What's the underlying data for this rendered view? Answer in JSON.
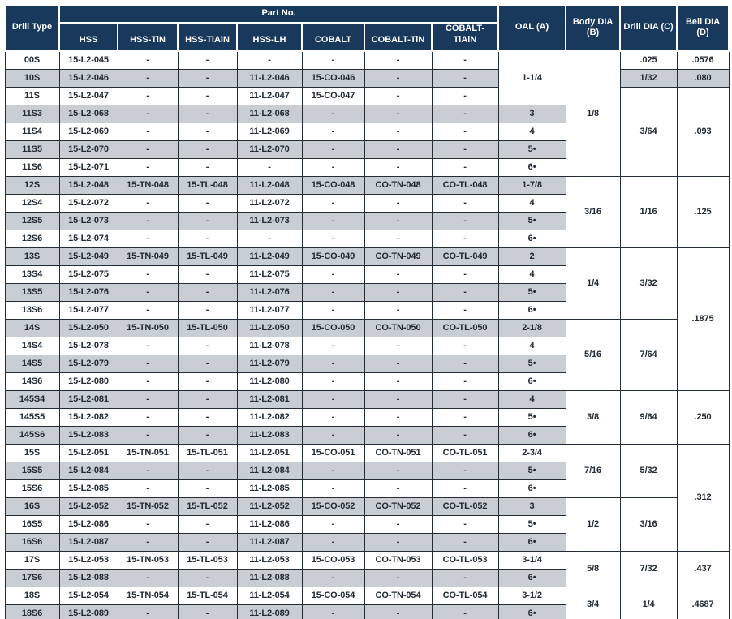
{
  "colors": {
    "header_bg": "#18395b",
    "header_text": "#ffffff",
    "row_stripe": "#c8ced4",
    "row_white": "#ffffff",
    "cell_border": "#242c36",
    "body_text": "#222a34"
  },
  "table": {
    "header": {
      "drill_type_label": "Drill Type",
      "part_no_label": "Part No.",
      "part_columns": [
        "HSS",
        "HSS-TiN",
        "HSS-TiAlN",
        "HSS-LH",
        "COBALT",
        "COBALT-TiN",
        "COBALT-TiAlN"
      ],
      "oal_label": "OAL (A)",
      "body_dia_label": "Body DIA\n(B)",
      "drill_dia_label": "Drill DIA (C)",
      "bell_dia_label": "Bell DIA\n(D)"
    },
    "rows": [
      {
        "drill_type": "00S",
        "parts": [
          "15-L2-045",
          "-",
          "-",
          "-",
          "-",
          "-",
          "-"
        ],
        "oal": {
          "value": "1-1/4",
          "rowspan": 3
        },
        "body": {
          "value": "1/8",
          "rowspan": 7
        },
        "drill": {
          "value": ".025",
          "rowspan": 1
        },
        "bell": {
          "value": ".0576",
          "rowspan": 1
        }
      },
      {
        "drill_type": "10S",
        "parts": [
          "15-L2-046",
          "-",
          "-",
          "11-L2-046",
          "15-CO-046",
          "-",
          "-"
        ],
        "drill": {
          "value": "1/32",
          "rowspan": 1
        },
        "bell": {
          "value": ".080",
          "rowspan": 1
        }
      },
      {
        "drill_type": "11S",
        "parts": [
          "15-L2-047",
          "-",
          "-",
          "11-L2-047",
          "15-CO-047",
          "-",
          "-"
        ],
        "drill": {
          "value": "3/64",
          "rowspan": 5
        },
        "bell": {
          "value": ".093",
          "rowspan": 5
        }
      },
      {
        "drill_type": "11S3",
        "parts": [
          "15-L2-068",
          "-",
          "-",
          "11-L2-068",
          "-",
          "-",
          "-"
        ],
        "oal": {
          "value": "3",
          "rowspan": 1
        }
      },
      {
        "drill_type": "11S4",
        "parts": [
          "15-L2-069",
          "-",
          "-",
          "11-L2-069",
          "-",
          "-",
          "-"
        ],
        "oal": {
          "value": "4",
          "rowspan": 1
        }
      },
      {
        "drill_type": "11S5",
        "parts": [
          "15-L2-070",
          "-",
          "-",
          "11-L2-070",
          "-",
          "-",
          "-"
        ],
        "oal": {
          "value": "5•",
          "rowspan": 1
        }
      },
      {
        "drill_type": "11S6",
        "parts": [
          "15-L2-071",
          "-",
          "-",
          "-",
          "-",
          "-",
          "-"
        ],
        "oal": {
          "value": "6•",
          "rowspan": 1
        }
      },
      {
        "drill_type": "12S",
        "parts": [
          "15-L2-048",
          "15-TN-048",
          "15-TL-048",
          "11-L2-048",
          "15-CO-048",
          "CO-TN-048",
          "CO-TL-048"
        ],
        "oal": {
          "value": "1-7/8",
          "rowspan": 1
        },
        "body": {
          "value": "3/16",
          "rowspan": 4
        },
        "drill": {
          "value": "1/16",
          "rowspan": 4
        },
        "bell": {
          "value": ".125",
          "rowspan": 4
        }
      },
      {
        "drill_type": "12S4",
        "parts": [
          "15-L2-072",
          "-",
          "-",
          "11-L2-072",
          "-",
          "-",
          "-"
        ],
        "oal": {
          "value": "4",
          "rowspan": 1
        }
      },
      {
        "drill_type": "12S5",
        "parts": [
          "15-L2-073",
          "-",
          "-",
          "11-L2-073",
          "-",
          "-",
          "-"
        ],
        "oal": {
          "value": "5•",
          "rowspan": 1
        }
      },
      {
        "drill_type": "12S6",
        "parts": [
          "15-L2-074",
          "-",
          "-",
          "-",
          "-",
          "-",
          "-"
        ],
        "oal": {
          "value": "6•",
          "rowspan": 1
        }
      },
      {
        "drill_type": "13S",
        "parts": [
          "15-L2-049",
          "15-TN-049",
          "15-TL-049",
          "11-L2-049",
          "15-CO-049",
          "CO-TN-049",
          "CO-TL-049"
        ],
        "oal": {
          "value": "2",
          "rowspan": 1
        },
        "body": {
          "value": "1/4",
          "rowspan": 4
        },
        "drill": {
          "value": "3/32",
          "rowspan": 4
        },
        "bell": {
          "value": ".1875",
          "rowspan": 8
        }
      },
      {
        "drill_type": "13S4",
        "parts": [
          "15-L2-075",
          "-",
          "-",
          "11-L2-075",
          "-",
          "-",
          "-"
        ],
        "oal": {
          "value": "4",
          "rowspan": 1
        }
      },
      {
        "drill_type": "13S5",
        "parts": [
          "15-L2-076",
          "-",
          "-",
          "11-L2-076",
          "-",
          "-",
          "-"
        ],
        "oal": {
          "value": "5•",
          "rowspan": 1
        }
      },
      {
        "drill_type": "13S6",
        "parts": [
          "15-L2-077",
          "-",
          "-",
          "11-L2-077",
          "-",
          "-",
          "-"
        ],
        "oal": {
          "value": "6•",
          "rowspan": 1
        }
      },
      {
        "drill_type": "14S",
        "parts": [
          "15-L2-050",
          "15-TN-050",
          "15-TL-050",
          "11-L2-050",
          "15-CO-050",
          "CO-TN-050",
          "CO-TL-050"
        ],
        "oal": {
          "value": "2-1/8",
          "rowspan": 1
        },
        "body": {
          "value": "5/16",
          "rowspan": 4
        },
        "drill": {
          "value": "7/64",
          "rowspan": 4
        }
      },
      {
        "drill_type": "14S4",
        "parts": [
          "15-L2-078",
          "-",
          "-",
          "11-L2-078",
          "-",
          "-",
          "-"
        ],
        "oal": {
          "value": "4",
          "rowspan": 1
        }
      },
      {
        "drill_type": "14S5",
        "parts": [
          "15-L2-079",
          "-",
          "-",
          "11-L2-079",
          "-",
          "-",
          "-"
        ],
        "oal": {
          "value": "5•",
          "rowspan": 1
        }
      },
      {
        "drill_type": "14S6",
        "parts": [
          "15-L2-080",
          "-",
          "-",
          "11-L2-080",
          "-",
          "-",
          "-"
        ],
        "oal": {
          "value": "6•",
          "rowspan": 1
        }
      },
      {
        "drill_type": "145S4",
        "parts": [
          "15-L2-081",
          "-",
          "-",
          "11-L2-081",
          "-",
          "-",
          "-"
        ],
        "oal": {
          "value": "4",
          "rowspan": 1
        },
        "body": {
          "value": "3/8",
          "rowspan": 3
        },
        "drill": {
          "value": "9/64",
          "rowspan": 3
        },
        "bell": {
          "value": ".250",
          "rowspan": 3
        }
      },
      {
        "drill_type": "145S5",
        "parts": [
          "15-L2-082",
          "-",
          "-",
          "11-L2-082",
          "-",
          "-",
          "-"
        ],
        "oal": {
          "value": "5•",
          "rowspan": 1
        }
      },
      {
        "drill_type": "145S6",
        "parts": [
          "15-L2-083",
          "-",
          "-",
          "11-L2-083",
          "-",
          "-",
          "-"
        ],
        "oal": {
          "value": "6•",
          "rowspan": 1
        }
      },
      {
        "drill_type": "15S",
        "parts": [
          "15-L2-051",
          "15-TN-051",
          "15-TL-051",
          "11-L2-051",
          "15-CO-051",
          "CO-TN-051",
          "CO-TL-051"
        ],
        "oal": {
          "value": "2-3/4",
          "rowspan": 1
        },
        "body": {
          "value": "7/16",
          "rowspan": 3
        },
        "drill": {
          "value": "5/32",
          "rowspan": 3
        },
        "bell": {
          "value": ".312",
          "rowspan": 6
        }
      },
      {
        "drill_type": "15S5",
        "parts": [
          "15-L2-084",
          "-",
          "-",
          "11-L2-084",
          "-",
          "-",
          "-"
        ],
        "oal": {
          "value": "5•",
          "rowspan": 1
        }
      },
      {
        "drill_type": "15S6",
        "parts": [
          "15-L2-085",
          "-",
          "-",
          "11-L2-085",
          "-",
          "-",
          "-"
        ],
        "oal": {
          "value": "6•",
          "rowspan": 1
        }
      },
      {
        "drill_type": "16S",
        "parts": [
          "15-L2-052",
          "15-TN-052",
          "15-TL-052",
          "11-L2-052",
          "15-CO-052",
          "CO-TN-052",
          "CO-TL-052"
        ],
        "oal": {
          "value": "3",
          "rowspan": 1
        },
        "body": {
          "value": "1/2",
          "rowspan": 3
        },
        "drill": {
          "value": "3/16",
          "rowspan": 3
        }
      },
      {
        "drill_type": "16S5",
        "parts": [
          "15-L2-086",
          "-",
          "-",
          "11-L2-086",
          "-",
          "-",
          "-"
        ],
        "oal": {
          "value": "5•",
          "rowspan": 1
        }
      },
      {
        "drill_type": "16S6",
        "parts": [
          "15-L2-087",
          "-",
          "-",
          "11-L2-087",
          "-",
          "-",
          "-"
        ],
        "oal": {
          "value": "6•",
          "rowspan": 1
        }
      },
      {
        "drill_type": "17S",
        "parts": [
          "15-L2-053",
          "15-TN-053",
          "15-TL-053",
          "11-L2-053",
          "15-CO-053",
          "CO-TN-053",
          "CO-TL-053"
        ],
        "oal": {
          "value": "3-1/4",
          "rowspan": 1
        },
        "body": {
          "value": "5/8",
          "rowspan": 2
        },
        "drill": {
          "value": "7/32",
          "rowspan": 2
        },
        "bell": {
          "value": ".437",
          "rowspan": 2
        }
      },
      {
        "drill_type": "17S6",
        "parts": [
          "15-L2-088",
          "-",
          "-",
          "11-L2-088",
          "-",
          "-",
          "-"
        ],
        "oal": {
          "value": "6•",
          "rowspan": 1
        }
      },
      {
        "drill_type": "18S",
        "parts": [
          "15-L2-054",
          "15-TN-054",
          "15-TL-054",
          "11-L2-054",
          "15-CO-054",
          "CO-TN-054",
          "CO-TL-054"
        ],
        "oal": {
          "value": "3-1/2",
          "rowspan": 1
        },
        "body": {
          "value": "3/4",
          "rowspan": 2
        },
        "drill": {
          "value": "1/4",
          "rowspan": 2
        },
        "bell": {
          "value": ".4687",
          "rowspan": 2
        }
      },
      {
        "drill_type": "18S6",
        "parts": [
          "15-L2-089",
          "-",
          "-",
          "11-L2-089",
          "-",
          "-",
          "-"
        ],
        "oal": {
          "value": "6•",
          "rowspan": 1
        }
      }
    ]
  }
}
